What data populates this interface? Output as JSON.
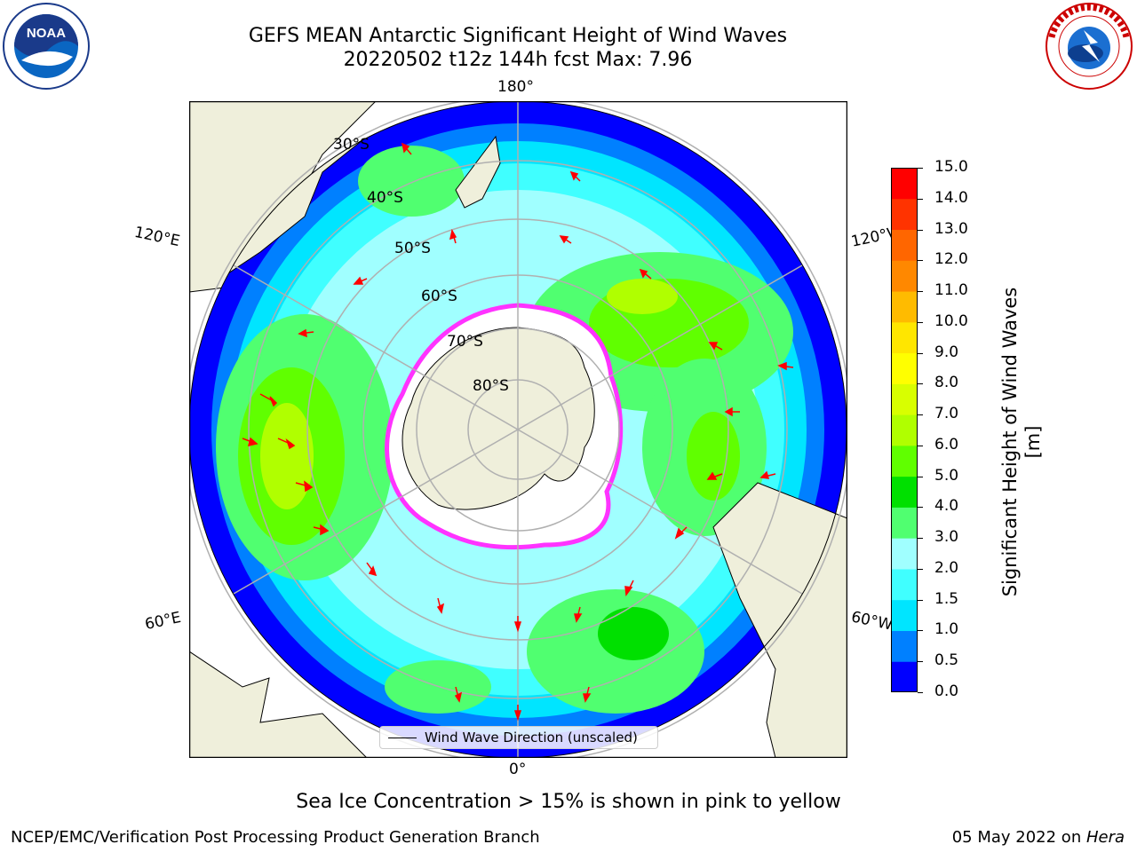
{
  "header": {
    "title_line1": "GEFS MEAN Antarctic Significant Height of Wind Waves",
    "title_line2": "20220502 t12z 144h fcst   Max: 7.96",
    "left_logo": "NOAA",
    "left_logo_ring_text": "NATIONAL OCEANIC AND ATMOSPHERIC ADMINISTRATION · U.S. DEPARTMENT OF COMMERCE",
    "right_logo_ring_text": "NATIONAL WEATHER SERVICE"
  },
  "map": {
    "projection": "south-polar-stereographic",
    "longitude_labels": {
      "top": "180°",
      "bottom": "0°",
      "upper_left": "120°E",
      "upper_right": "120°W",
      "lower_left": "60°E",
      "lower_right": "60°W"
    },
    "latitude_labels": [
      "30°S",
      "40°S",
      "50°S",
      "60°S",
      "70°S",
      "80°S"
    ],
    "legend_label": "Wind Wave Direction (unscaled)",
    "colors": {
      "land": "#efefdb",
      "ice": "#ffffff",
      "graticule": "#b0b0b0",
      "arrows": "#ff0000",
      "sea_ice_edge": "#ff33ff"
    }
  },
  "colorbar": {
    "label": "Significant Height of Wind Waves [m]",
    "ticks": [
      "0.0",
      "0.5",
      "1.0",
      "1.5",
      "2.0",
      "3.0",
      "4.0",
      "5.0",
      "6.0",
      "7.0",
      "8.0",
      "9.0",
      "10.0",
      "11.0",
      "12.0",
      "13.0",
      "14.0",
      "15.0"
    ],
    "colors": [
      "#0000ff",
      "#0080ff",
      "#00e5ff",
      "#40ffff",
      "#a0ffff",
      "#50ff70",
      "#00e000",
      "#60ff00",
      "#b0ff00",
      "#d8ff00",
      "#ffff00",
      "#ffe600",
      "#ffbb00",
      "#ff8800",
      "#ff6600",
      "#ff3300",
      "#ff0000"
    ]
  },
  "caption": "Sea Ice Concentration > 15% is shown in pink to yellow",
  "footer": {
    "left": "NCEP/EMC/Verification Post Processing Product Generation Branch",
    "right_date": "05 May 2022 on ",
    "right_machine": "Hera"
  }
}
